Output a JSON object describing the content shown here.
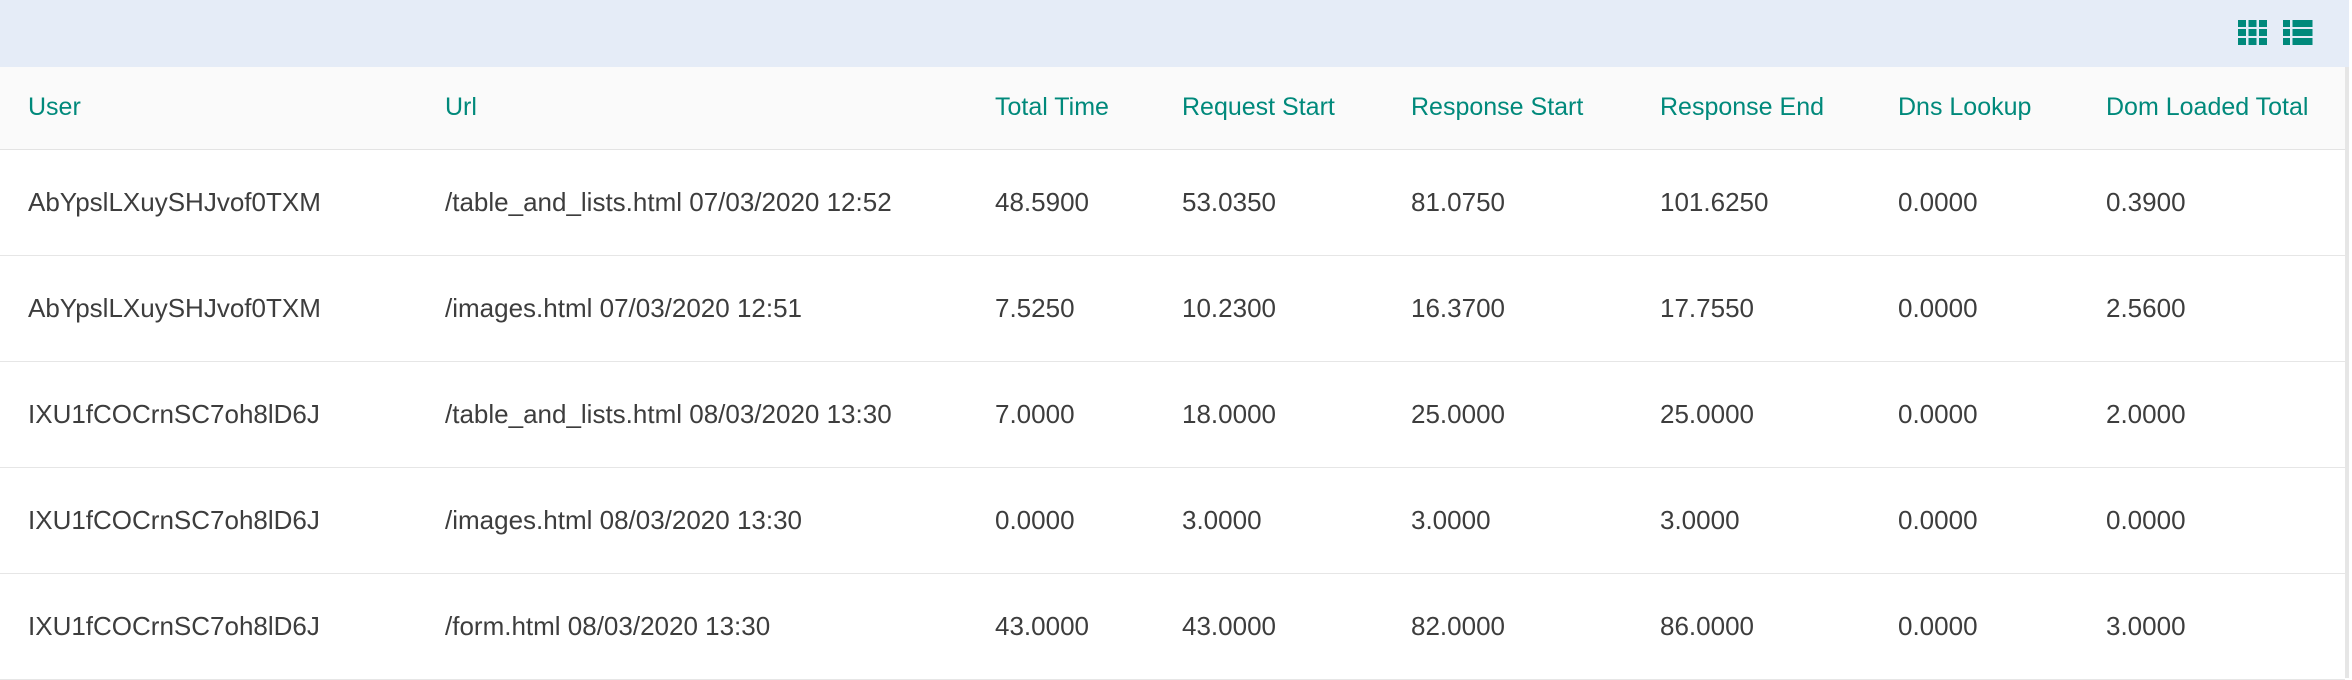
{
  "toolbar": {
    "icons": {
      "grid": "grid-view-icon",
      "list": "list-view-icon"
    },
    "accent_color": "#00897b",
    "background_color": "#e5ecf7"
  },
  "table": {
    "columns": [
      "User",
      "Url",
      "Total Time",
      "Request Start",
      "Response Start",
      "Response End",
      "Dns Lookup",
      "Dom Loaded Total"
    ],
    "rows": [
      {
        "user": "AbYpslLXuySHJvof0TXM",
        "url": "/table_and_lists.html 07/03/2020 12:52",
        "total_time": "48.5900",
        "request_start": "53.0350",
        "response_start": "81.0750",
        "response_end": "101.6250",
        "dns_lookup": "0.0000",
        "dom_loaded_total": "0.3900"
      },
      {
        "user": "AbYpslLXuySHJvof0TXM",
        "url": "/images.html 07/03/2020 12:51",
        "total_time": "7.5250",
        "request_start": "10.2300",
        "response_start": "16.3700",
        "response_end": "17.7550",
        "dns_lookup": "0.0000",
        "dom_loaded_total": "2.5600"
      },
      {
        "user": "IXU1fCOCrnSC7oh8lD6J",
        "url": "/table_and_lists.html 08/03/2020 13:30",
        "total_time": "7.0000",
        "request_start": "18.0000",
        "response_start": "25.0000",
        "response_end": "25.0000",
        "dns_lookup": "0.0000",
        "dom_loaded_total": "2.0000"
      },
      {
        "user": "IXU1fCOCrnSC7oh8lD6J",
        "url": "/images.html 08/03/2020 13:30",
        "total_time": "0.0000",
        "request_start": "3.0000",
        "response_start": "3.0000",
        "response_end": "3.0000",
        "dns_lookup": "0.0000",
        "dom_loaded_total": "0.0000"
      },
      {
        "user": "IXU1fCOCrnSC7oh8lD6J",
        "url": "/form.html 08/03/2020 13:30",
        "total_time": "43.0000",
        "request_start": "43.0000",
        "response_start": "82.0000",
        "response_end": "86.0000",
        "dns_lookup": "0.0000",
        "dom_loaded_total": "3.0000"
      }
    ]
  }
}
